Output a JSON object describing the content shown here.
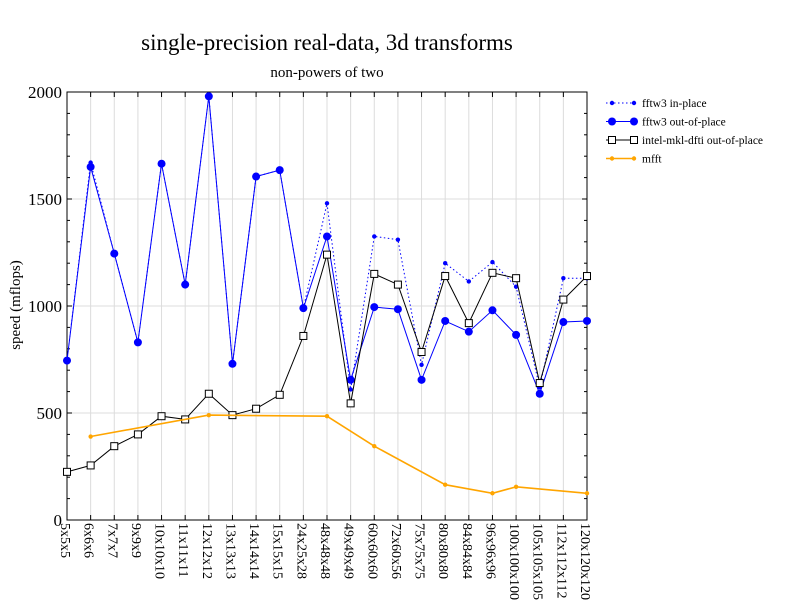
{
  "chart_data": {
    "type": "line",
    "title": "single-precision real-data, 3d transforms",
    "subtitle": "non-powers of two",
    "xlabel": "",
    "ylabel": "speed (mflops)",
    "ylim": [
      0,
      2000
    ],
    "yticks": [
      0,
      500,
      1000,
      1500,
      2000
    ],
    "grid": true,
    "legend_position": "top-right-outside",
    "categories": [
      "5x5x5",
      "6x6x6",
      "7x7x7",
      "9x9x9",
      "10x10x10",
      "11x11x11",
      "12x12x12",
      "13x13x13",
      "14x14x14",
      "15x15x15",
      "24x25x28",
      "48x48x48",
      "49x49x49",
      "60x60x60",
      "72x60x56",
      "75x75x75",
      "80x80x80",
      "84x84x84",
      "96x96x96",
      "100x100x100",
      "105x105x105",
      "112x112x112",
      "120x120x120"
    ],
    "series": [
      {
        "name": "fftw3 in-place",
        "color": "#0000ff",
        "style": "dotted",
        "marker": "small-dot",
        "values": [
          745,
          1670,
          1245,
          830,
          1665,
          1100,
          1980,
          730,
          1605,
          1635,
          990,
          1480,
          610,
          1325,
          1310,
          725,
          1200,
          1115,
          1205,
          1090,
          620,
          1130,
          1130
        ]
      },
      {
        "name": "fftw3 out-of-place",
        "color": "#0000ff",
        "style": "solid",
        "marker": "dot",
        "values": [
          745,
          1650,
          1245,
          830,
          1665,
          1100,
          1980,
          730,
          1605,
          1635,
          990,
          1325,
          655,
          995,
          985,
          655,
          930,
          880,
          980,
          865,
          590,
          925,
          930
        ]
      },
      {
        "name": "intel-mkl-dfti out-of-place",
        "color": "#000000",
        "style": "solid",
        "marker": "square",
        "values": [
          225,
          255,
          345,
          400,
          485,
          470,
          590,
          490,
          520,
          585,
          860,
          1240,
          545,
          1150,
          1100,
          785,
          1140,
          920,
          1155,
          1130,
          640,
          1030,
          1140
        ]
      },
      {
        "name": "mfft",
        "color": "#ffa500",
        "style": "solid",
        "marker": "small-dot",
        "values": [
          null,
          390,
          null,
          null,
          null,
          null,
          490,
          null,
          null,
          null,
          null,
          485,
          null,
          345,
          null,
          null,
          165,
          null,
          125,
          155,
          null,
          null,
          125
        ]
      }
    ]
  }
}
